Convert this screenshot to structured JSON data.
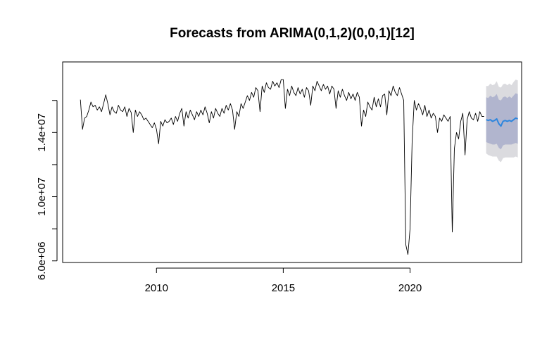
{
  "chart_data": {
    "type": "line",
    "title": "Forecasts from ARIMA(0,1,2)(0,0,1)[12]",
    "xlabel": "",
    "ylabel": "",
    "xlim": [
      2006.3,
      2024.4
    ],
    "ylim": [
      5900000,
      18400000
    ],
    "x_ticks": [
      2010,
      2015,
      2020
    ],
    "x_tick_labels": [
      "2010",
      "2015",
      "2020"
    ],
    "y_ticks": [
      6000000,
      8000000,
      10000000,
      12000000,
      14000000,
      16000000
    ],
    "y_tick_labels": [
      "6.0e+06",
      "",
      "1.0e+07",
      "",
      "1.4e+07",
      ""
    ],
    "grid": false,
    "series": [
      {
        "role": "observed",
        "color": "#000000",
        "start": 2007.0,
        "frequency": 12,
        "values": [
          16050000,
          14200000,
          14900000,
          15000000,
          15400000,
          15900000,
          15600000,
          15700000,
          15400000,
          15600000,
          15300000,
          15800000,
          16350000,
          15800000,
          15100000,
          15600000,
          15300000,
          15200000,
          15700000,
          15400000,
          15300000,
          15600000,
          15000000,
          15500000,
          15250000,
          14000000,
          15400000,
          15000000,
          15300000,
          15100000,
          14800000,
          14900000,
          14700000,
          14500000,
          14300000,
          14600000,
          14200000,
          13300000,
          14700000,
          14400000,
          14800000,
          14600000,
          14700000,
          14900000,
          14500000,
          15000000,
          14700000,
          15200000,
          15500000,
          14400000,
          15300000,
          14900000,
          15400000,
          15100000,
          14800000,
          15300000,
          15000000,
          15400000,
          15100000,
          15600000,
          15200000,
          14600000,
          15300000,
          14900000,
          15500000,
          15200000,
          15000000,
          15500000,
          15200000,
          15700000,
          15400000,
          15800000,
          15400000,
          14200000,
          15300000,
          15000000,
          15800000,
          15500000,
          15900000,
          16300000,
          16000000,
          16500000,
          16200000,
          16800000,
          16600000,
          15300000,
          16900000,
          16500000,
          17100000,
          16800000,
          16700000,
          17200000,
          16900000,
          17100000,
          16800000,
          17300000,
          17300000,
          15500000,
          16700000,
          16300000,
          16900000,
          16500000,
          16300000,
          16800000,
          16400000,
          16700000,
          16200000,
          16800000,
          16600000,
          15700000,
          16900000,
          16600000,
          17200000,
          16900000,
          16600000,
          17000000,
          16700000,
          16900000,
          16400000,
          16900000,
          16700000,
          15500000,
          16600000,
          16200000,
          16700000,
          16300000,
          16000000,
          16500000,
          16100000,
          16400000,
          16000000,
          16500000,
          16200000,
          14400000,
          15400000,
          15000000,
          15900000,
          15600000,
          15400000,
          16200000,
          15600000,
          16100000,
          15600000,
          16300000,
          16400000,
          15100000,
          16600000,
          16300000,
          16900000,
          16500000,
          16300000,
          16800000,
          16400000,
          16000000,
          7000000,
          6400000,
          8000000,
          13500000,
          16000000,
          15400000,
          15800000,
          15500000,
          15100000,
          15700000,
          15000000,
          15400000,
          14900000,
          15200000,
          15000000,
          14000000,
          14900000,
          14700000,
          15100000,
          14900000,
          14700000,
          15000000,
          7800000,
          13000000,
          14000000,
          13600000,
          14700000,
          15200000,
          12600000,
          14800000,
          15300000,
          14900000,
          14800000,
          15200000,
          14700000,
          15300000,
          15000000,
          15000000
        ]
      },
      {
        "role": "forecast",
        "color": "#2E86DE",
        "start": 2023.0,
        "frequency": 12,
        "values": [
          14800000,
          14750000,
          14800000,
          14700000,
          14750000,
          14850000,
          14550000,
          14400000,
          14700000,
          14750000,
          14700000,
          14750000,
          14700000,
          14800000,
          14900000,
          14850000
        ],
        "lo80": [
          13400000,
          13350000,
          13300000,
          13250000,
          13250000,
          13300000,
          13050000,
          12950000,
          13200000,
          13250000,
          13250000,
          13250000,
          13250000,
          13300000,
          13350000,
          13300000
        ],
        "hi80": [
          16200000,
          16150000,
          16300000,
          16200000,
          16250000,
          16400000,
          16050000,
          16000000,
          16200000,
          16250000,
          16150000,
          16250000,
          16150000,
          16300000,
          16450000,
          16400000
        ],
        "lo95": [
          12700000,
          12600000,
          12550000,
          12500000,
          12500000,
          12500000,
          12250000,
          12150000,
          12400000,
          12450000,
          12450000,
          12450000,
          12450000,
          12450000,
          12500000,
          12450000
        ],
        "hi95": [
          16900000,
          16900000,
          17050000,
          16950000,
          17000000,
          17200000,
          16850000,
          16800000,
          17000000,
          17050000,
          16950000,
          17050000,
          16950000,
          17150000,
          17300000,
          17250000
        ]
      }
    ],
    "band_colors": {
      "pi95": "#DBDBDF",
      "pi80": "#B1B5CE"
    }
  }
}
